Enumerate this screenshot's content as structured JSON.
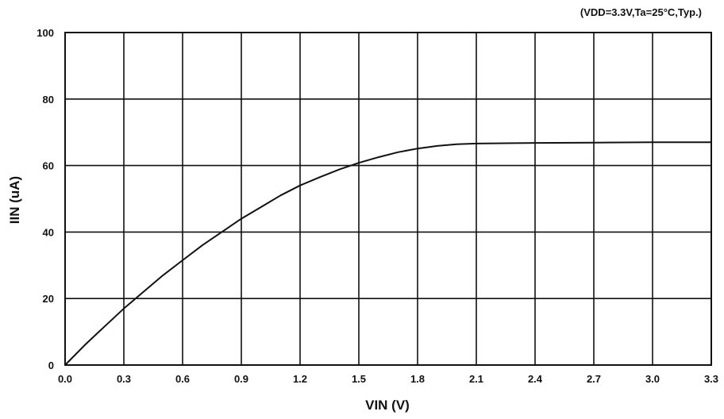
{
  "chart_data": {
    "type": "line",
    "title": "",
    "annotation": "(VDD=3.3V,Ta=25°C,Typ.)",
    "xlabel": "VIN (V)",
    "ylabel": "IIN (uA)",
    "xlim": [
      0,
      3.3
    ],
    "ylim": [
      0,
      100
    ],
    "xticks": [
      "0.0",
      "0.3",
      "0.6",
      "0.9",
      "1.2",
      "1.5",
      "1.8",
      "2.1",
      "2.4",
      "2.7",
      "3.0",
      "3.3"
    ],
    "yticks": [
      "0",
      "20",
      "40",
      "60",
      "80",
      "100"
    ],
    "grid": true,
    "legend": "none",
    "series": [
      {
        "x": [
          0,
          0.1,
          0.2,
          0.3,
          0.4,
          0.5,
          0.6,
          0.7,
          0.8,
          0.9,
          1.0,
          1.1,
          1.2,
          1.3,
          1.4,
          1.5,
          1.6,
          1.7,
          1.8,
          1.9,
          2.0,
          2.1,
          2.4,
          2.7,
          3.0,
          3.3
        ],
        "y": [
          0,
          6,
          11.5,
          17,
          22,
          27,
          31.5,
          36,
          40,
          44,
          47.5,
          51,
          54,
          56.5,
          58.8,
          60.8,
          62.5,
          64,
          65.1,
          65.9,
          66.4,
          66.6,
          66.8,
          66.9,
          67,
          67
        ],
        "color": "#111111"
      }
    ]
  }
}
